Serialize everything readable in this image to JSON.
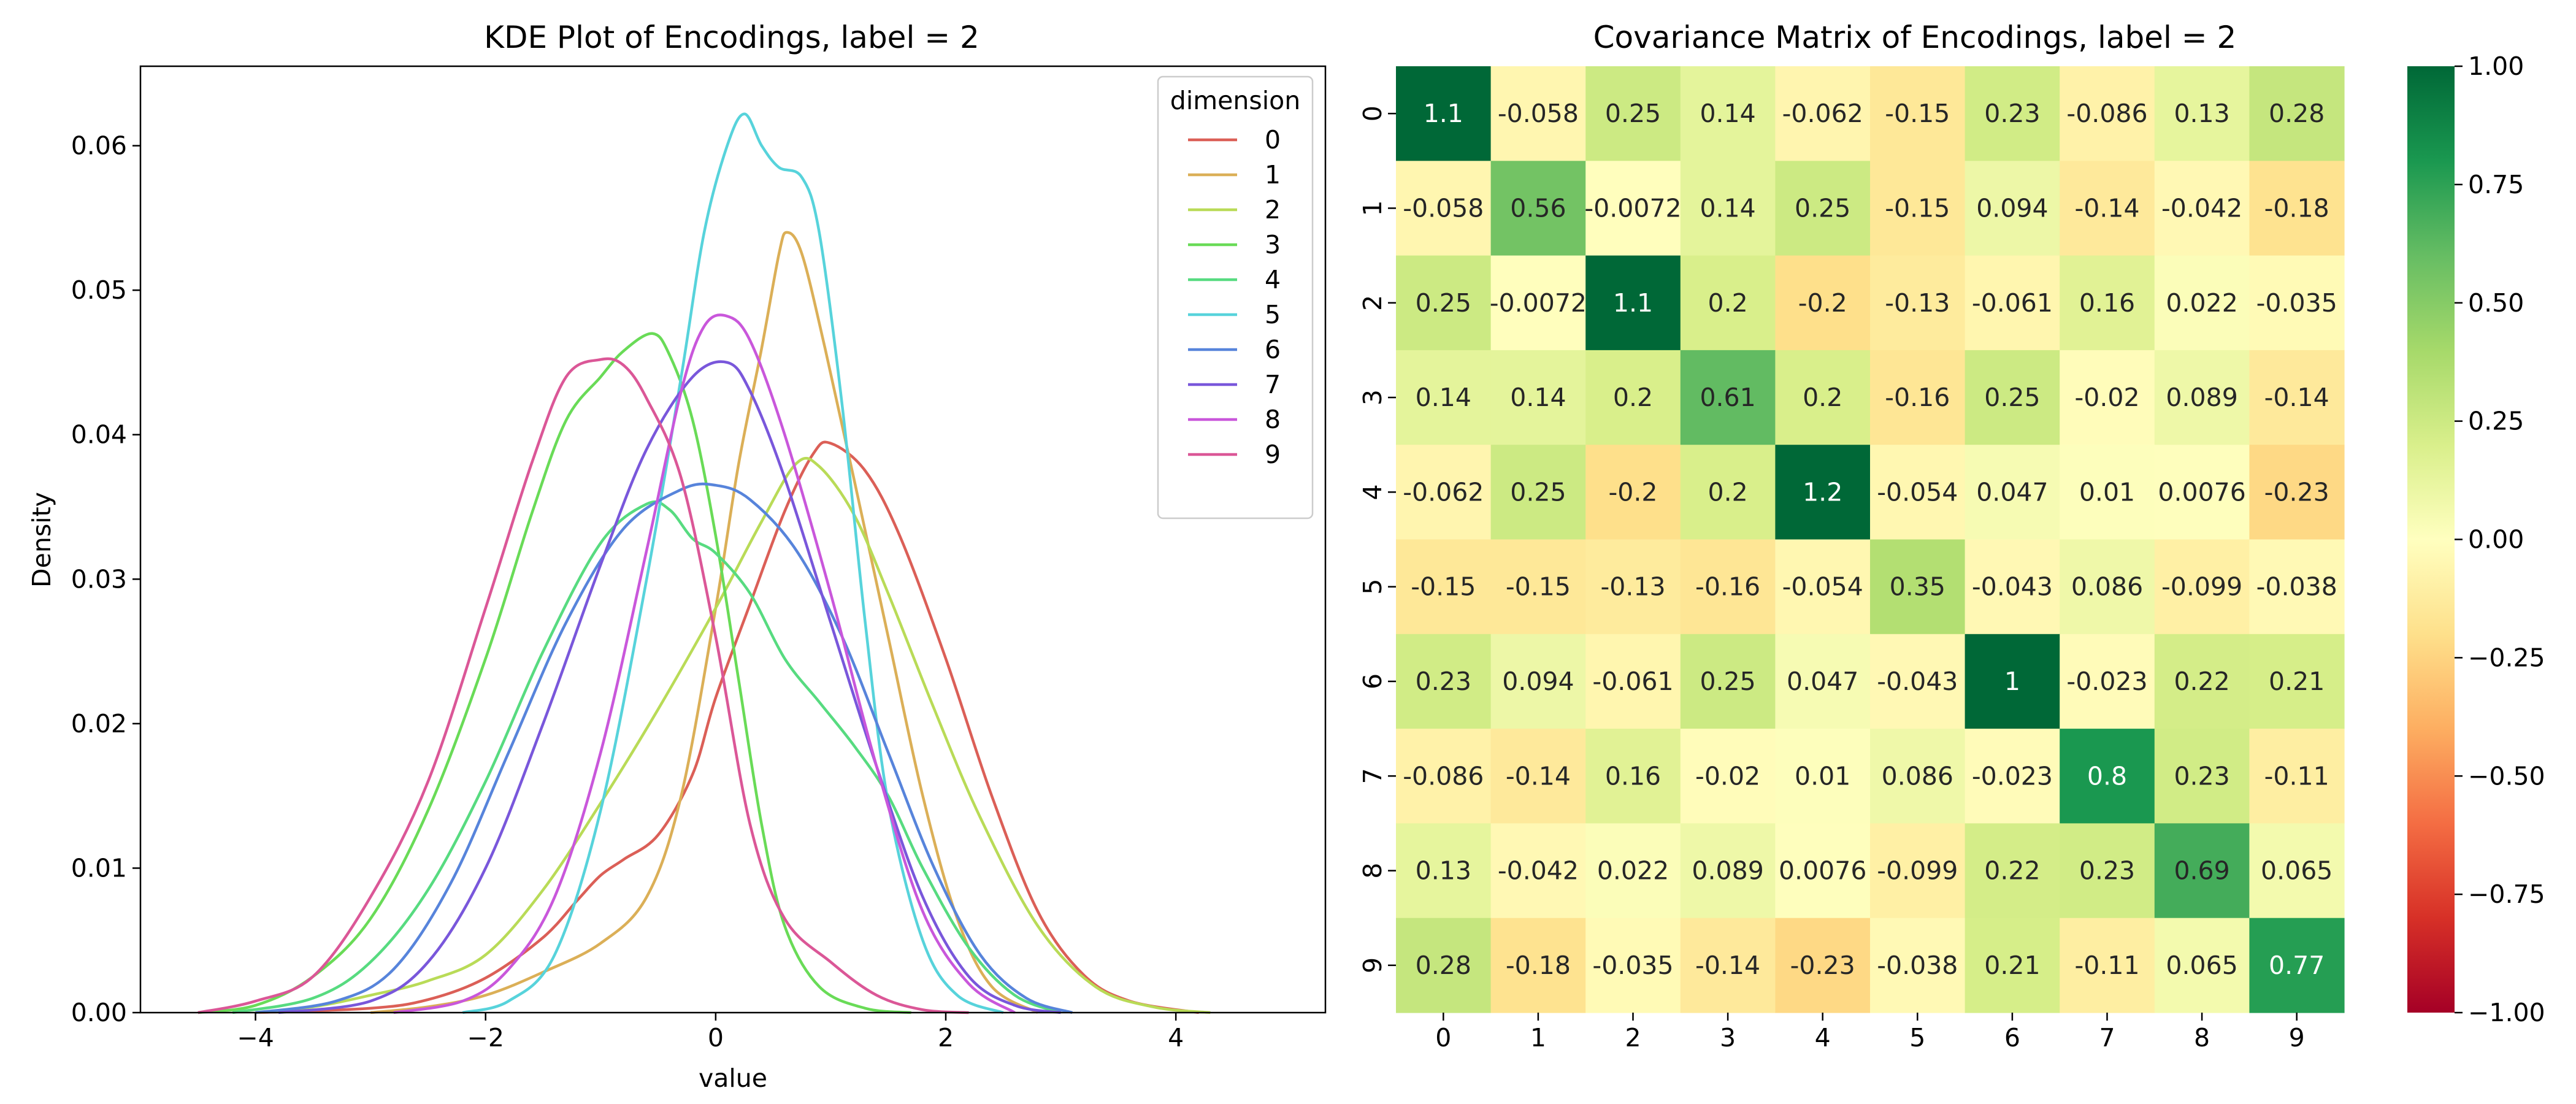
{
  "chart_data": [
    {
      "type": "line",
      "title": "KDE Plot of Encodings, label = 2",
      "xlabel": "value",
      "ylabel": "Density",
      "xlim": [
        -5.0,
        5.3
      ],
      "ylim": [
        0,
        0.0655
      ],
      "xticks": [
        -4,
        -2,
        0,
        2,
        4
      ],
      "xtick_labels": [
        "−4",
        "−2",
        "0",
        "2",
        "4"
      ],
      "yticks": [
        0.0,
        0.01,
        0.02,
        0.03,
        0.04,
        0.05,
        0.06
      ],
      "ytick_labels": [
        "0.00",
        "0.01",
        "0.02",
        "0.03",
        "0.04",
        "0.05",
        "0.06"
      ],
      "grid": false,
      "legend": {
        "title": "dimension",
        "placement": "top-right"
      },
      "series": [
        {
          "name": "0",
          "color": "#db5f57",
          "points": [
            [
              -4.0,
              0
            ],
            [
              -3.0,
              0.0003
            ],
            [
              -2.5,
              0.0009
            ],
            [
              -2.0,
              0.0024
            ],
            [
              -1.5,
              0.0052
            ],
            [
              -1.2,
              0.0078
            ],
            [
              -1.0,
              0.0095
            ],
            [
              -0.8,
              0.0106
            ],
            [
              -0.5,
              0.0123
            ],
            [
              -0.2,
              0.0165
            ],
            [
              0.0,
              0.0218
            ],
            [
              0.3,
              0.0283
            ],
            [
              0.6,
              0.0347
            ],
            [
              0.85,
              0.0387
            ],
            [
              1.0,
              0.0394
            ],
            [
              1.3,
              0.0375
            ],
            [
              1.6,
              0.033
            ],
            [
              2.0,
              0.0245
            ],
            [
              2.4,
              0.015
            ],
            [
              2.8,
              0.007
            ],
            [
              3.2,
              0.0026
            ],
            [
              3.6,
              0.0008
            ],
            [
              4.2,
              0
            ]
          ]
        },
        {
          "name": "1",
          "color": "#dbaf57",
          "points": [
            [
              -3.0,
              0
            ],
            [
              -2.5,
              0.0004
            ],
            [
              -2.0,
              0.0012
            ],
            [
              -1.5,
              0.0028
            ],
            [
              -1.0,
              0.0048
            ],
            [
              -0.6,
              0.008
            ],
            [
              -0.3,
              0.015
            ],
            [
              0.0,
              0.028
            ],
            [
              0.2,
              0.038
            ],
            [
              0.4,
              0.046
            ],
            [
              0.55,
              0.0525
            ],
            [
              0.62,
              0.054
            ],
            [
              0.75,
              0.0525
            ],
            [
              0.95,
              0.046
            ],
            [
              1.2,
              0.037
            ],
            [
              1.5,
              0.026
            ],
            [
              1.8,
              0.015
            ],
            [
              2.1,
              0.0065
            ],
            [
              2.4,
              0.0018
            ],
            [
              2.8,
              0
            ]
          ]
        },
        {
          "name": "2",
          "color": "#b9db57",
          "points": [
            [
              -4.0,
              0
            ],
            [
              -3.5,
              0.0004
            ],
            [
              -3.0,
              0.0012
            ],
            [
              -2.5,
              0.0022
            ],
            [
              -2.0,
              0.004
            ],
            [
              -1.5,
              0.0085
            ],
            [
              -1.0,
              0.0145
            ],
            [
              -0.5,
              0.021
            ],
            [
              0.0,
              0.028
            ],
            [
              0.4,
              0.034
            ],
            [
              0.7,
              0.038
            ],
            [
              0.9,
              0.0378
            ],
            [
              1.2,
              0.0345
            ],
            [
              1.5,
              0.029
            ],
            [
              1.9,
              0.021
            ],
            [
              2.3,
              0.0135
            ],
            [
              2.8,
              0.006
            ],
            [
              3.3,
              0.0018
            ],
            [
              3.8,
              0.0004
            ],
            [
              4.3,
              0
            ]
          ]
        },
        {
          "name": "3",
          "color": "#69db57",
          "points": [
            [
              -4.5,
              0
            ],
            [
              -4.0,
              0.0005
            ],
            [
              -3.5,
              0.0025
            ],
            [
              -3.0,
              0.0065
            ],
            [
              -2.5,
              0.014
            ],
            [
              -2.0,
              0.0245
            ],
            [
              -1.6,
              0.0345
            ],
            [
              -1.3,
              0.041
            ],
            [
              -1.0,
              0.044
            ],
            [
              -0.8,
              0.0458
            ],
            [
              -0.55,
              0.047
            ],
            [
              -0.4,
              0.0455
            ],
            [
              -0.2,
              0.041
            ],
            [
              0.0,
              0.033
            ],
            [
              0.2,
              0.023
            ],
            [
              0.4,
              0.013
            ],
            [
              0.6,
              0.006
            ],
            [
              0.9,
              0.0018
            ],
            [
              1.3,
              0.0003
            ],
            [
              1.7,
              0
            ]
          ]
        },
        {
          "name": "4",
          "color": "#57db80",
          "points": [
            [
              -4.2,
              0
            ],
            [
              -3.5,
              0.001
            ],
            [
              -3.0,
              0.0035
            ],
            [
              -2.5,
              0.0085
            ],
            [
              -2.0,
              0.016
            ],
            [
              -1.5,
              0.025
            ],
            [
              -1.0,
              0.0325
            ],
            [
              -0.6,
              0.0352
            ],
            [
              -0.4,
              0.0348
            ],
            [
              -0.2,
              0.0328
            ],
            [
              0.0,
              0.0318
            ],
            [
              0.3,
              0.029
            ],
            [
              0.6,
              0.0245
            ],
            [
              0.9,
              0.0215
            ],
            [
              1.2,
              0.0185
            ],
            [
              1.5,
              0.015
            ],
            [
              1.8,
              0.01
            ],
            [
              2.2,
              0.0045
            ],
            [
              2.6,
              0.0012
            ],
            [
              3.0,
              0
            ]
          ]
        },
        {
          "name": "5",
          "color": "#57d3db",
          "points": [
            [
              -2.2,
              0
            ],
            [
              -1.8,
              0.0008
            ],
            [
              -1.4,
              0.004
            ],
            [
              -1.0,
              0.014
            ],
            [
              -0.6,
              0.03
            ],
            [
              -0.3,
              0.044
            ],
            [
              -0.1,
              0.054
            ],
            [
              0.1,
              0.06
            ],
            [
              0.25,
              0.0622
            ],
            [
              0.4,
              0.06
            ],
            [
              0.55,
              0.0585
            ],
            [
              0.75,
              0.0578
            ],
            [
              0.9,
              0.054
            ],
            [
              1.1,
              0.042
            ],
            [
              1.3,
              0.027
            ],
            [
              1.5,
              0.0145
            ],
            [
              1.8,
              0.005
            ],
            [
              2.1,
              0.0012
            ],
            [
              2.5,
              0
            ]
          ]
        },
        {
          "name": "6",
          "color": "#5784db",
          "points": [
            [
              -4.0,
              0
            ],
            [
              -3.3,
              0.0008
            ],
            [
              -2.8,
              0.003
            ],
            [
              -2.3,
              0.009
            ],
            [
              -1.8,
              0.018
            ],
            [
              -1.3,
              0.027
            ],
            [
              -0.8,
              0.0335
            ],
            [
              -0.3,
              0.0362
            ],
            [
              0.0,
              0.0365
            ],
            [
              0.3,
              0.0355
            ],
            [
              0.7,
              0.032
            ],
            [
              1.1,
              0.026
            ],
            [
              1.5,
              0.018
            ],
            [
              1.9,
              0.01
            ],
            [
              2.3,
              0.004
            ],
            [
              2.7,
              0.001
            ],
            [
              3.1,
              0
            ]
          ]
        },
        {
          "name": "7",
          "color": "#7957db",
          "points": [
            [
              -3.8,
              0
            ],
            [
              -3.0,
              0.0008
            ],
            [
              -2.5,
              0.0035
            ],
            [
              -2.0,
              0.01
            ],
            [
              -1.5,
              0.02
            ],
            [
              -1.0,
              0.031
            ],
            [
              -0.6,
              0.039
            ],
            [
              -0.2,
              0.044
            ],
            [
              0.1,
              0.045
            ],
            [
              0.3,
              0.043
            ],
            [
              0.6,
              0.037
            ],
            [
              1.0,
              0.027
            ],
            [
              1.4,
              0.017
            ],
            [
              1.8,
              0.008
            ],
            [
              2.2,
              0.0025
            ],
            [
              2.6,
              0.0005
            ],
            [
              3.0,
              0
            ]
          ]
        },
        {
          "name": "8",
          "color": "#c957db",
          "points": [
            [
              -2.8,
              0
            ],
            [
              -2.2,
              0.0008
            ],
            [
              -1.8,
              0.003
            ],
            [
              -1.4,
              0.008
            ],
            [
              -1.0,
              0.018
            ],
            [
              -0.6,
              0.032
            ],
            [
              -0.3,
              0.043
            ],
            [
              -0.1,
              0.0475
            ],
            [
              0.1,
              0.0482
            ],
            [
              0.3,
              0.0465
            ],
            [
              0.6,
              0.04
            ],
            [
              1.0,
              0.029
            ],
            [
              1.4,
              0.017
            ],
            [
              1.8,
              0.007
            ],
            [
              2.2,
              0.002
            ],
            [
              2.6,
              0
            ]
          ]
        },
        {
          "name": "9",
          "color": "#db5797",
          "points": [
            [
              -4.5,
              0
            ],
            [
              -4.0,
              0.0008
            ],
            [
              -3.5,
              0.0025
            ],
            [
              -3.0,
              0.008
            ],
            [
              -2.5,
              0.016
            ],
            [
              -2.0,
              0.028
            ],
            [
              -1.6,
              0.038
            ],
            [
              -1.3,
              0.044
            ],
            [
              -1.0,
              0.0452
            ],
            [
              -0.8,
              0.0448
            ],
            [
              -0.6,
              0.0425
            ],
            [
              -0.3,
              0.037
            ],
            [
              0.0,
              0.026
            ],
            [
              0.3,
              0.013
            ],
            [
              0.6,
              0.0065
            ],
            [
              1.0,
              0.0035
            ],
            [
              1.4,
              0.0012
            ],
            [
              1.8,
              0.0002
            ],
            [
              2.2,
              0
            ]
          ]
        }
      ]
    },
    {
      "type": "heatmap",
      "title": "Covariance Matrix of Encodings, label = 2",
      "row_labels": [
        "0",
        "1",
        "2",
        "3",
        "4",
        "5",
        "6",
        "7",
        "8",
        "9"
      ],
      "col_labels": [
        "0",
        "1",
        "2",
        "3",
        "4",
        "5",
        "6",
        "7",
        "8",
        "9"
      ],
      "values": [
        [
          1.1,
          -0.058,
          0.25,
          0.14,
          -0.062,
          -0.15,
          0.23,
          -0.086,
          0.13,
          0.28
        ],
        [
          -0.058,
          0.56,
          -0.0072,
          0.14,
          0.25,
          -0.15,
          0.094,
          -0.14,
          -0.042,
          -0.18
        ],
        [
          0.25,
          -0.0072,
          1.1,
          0.2,
          -0.2,
          -0.13,
          -0.061,
          0.16,
          0.022,
          -0.035
        ],
        [
          0.14,
          0.14,
          0.2,
          0.61,
          0.2,
          -0.16,
          0.25,
          -0.02,
          0.089,
          -0.14
        ],
        [
          -0.062,
          0.25,
          -0.2,
          0.2,
          1.2,
          -0.054,
          0.047,
          0.01,
          0.0076,
          -0.23
        ],
        [
          -0.15,
          -0.15,
          -0.13,
          -0.16,
          -0.054,
          0.35,
          -0.043,
          0.086,
          -0.099,
          -0.038
        ],
        [
          0.23,
          0.094,
          -0.061,
          0.25,
          0.047,
          -0.043,
          1,
          -0.023,
          0.22,
          0.21
        ],
        [
          -0.086,
          -0.14,
          0.16,
          -0.02,
          0.01,
          0.086,
          -0.023,
          0.8,
          0.23,
          -0.11
        ],
        [
          0.13,
          -0.042,
          0.022,
          0.089,
          0.0076,
          -0.099,
          0.22,
          0.23,
          0.69,
          0.065
        ],
        [
          0.28,
          -0.18,
          -0.035,
          -0.14,
          -0.23,
          -0.038,
          0.21,
          -0.11,
          0.065,
          0.77
        ]
      ],
      "cell_labels": [
        [
          "1.1",
          "-0.058",
          "0.25",
          "0.14",
          "-0.062",
          "-0.15",
          "0.23",
          "-0.086",
          "0.13",
          "0.28"
        ],
        [
          "-0.058",
          "0.56",
          "-0.0072",
          "0.14",
          "0.25",
          "-0.15",
          "0.094",
          "-0.14",
          "-0.042",
          "-0.18"
        ],
        [
          "0.25",
          "-0.0072",
          "1.1",
          "0.2",
          "-0.2",
          "-0.13",
          "-0.061",
          "0.16",
          "0.022",
          "-0.035"
        ],
        [
          "0.14",
          "0.14",
          "0.2",
          "0.61",
          "0.2",
          "-0.16",
          "0.25",
          "-0.02",
          "0.089",
          "-0.14"
        ],
        [
          "-0.062",
          "0.25",
          "-0.2",
          "0.2",
          "1.2",
          "-0.054",
          "0.047",
          "0.01",
          "0.0076",
          "-0.23"
        ],
        [
          "-0.15",
          "-0.15",
          "-0.13",
          "-0.16",
          "-0.054",
          "0.35",
          "-0.043",
          "0.086",
          "-0.099",
          "-0.038"
        ],
        [
          "0.23",
          "0.094",
          "-0.061",
          "0.25",
          "0.047",
          "-0.043",
          "1",
          "-0.023",
          "0.22",
          "0.21"
        ],
        [
          "-0.086",
          "-0.14",
          "0.16",
          "-0.02",
          "0.01",
          "0.086",
          "-0.023",
          "0.8",
          "0.23",
          "-0.11"
        ],
        [
          "0.13",
          "-0.042",
          "0.022",
          "0.089",
          "0.0076",
          "-0.099",
          "0.22",
          "0.23",
          "0.69",
          "0.065"
        ],
        [
          "0.28",
          "-0.18",
          "-0.035",
          "-0.14",
          "-0.23",
          "-0.038",
          "0.21",
          "-0.11",
          "0.065",
          "0.77"
        ]
      ],
      "colormap": "RdYlGn",
      "vmin": -1.0,
      "vmax": 1.0,
      "colorbar_ticks": [
        1.0,
        0.75,
        0.5,
        0.25,
        0.0,
        -0.25,
        -0.5,
        -0.75,
        -1.0
      ],
      "colorbar_tick_labels": [
        "1.00",
        "0.75",
        "0.50",
        "0.25",
        "0.00",
        "−0.25",
        "−0.50",
        "−0.75",
        "−1.00"
      ]
    }
  ]
}
